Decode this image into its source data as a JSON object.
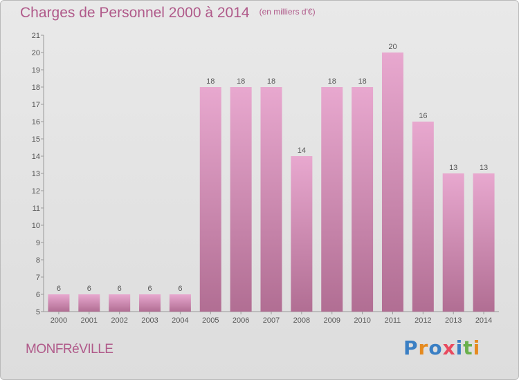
{
  "header": {
    "title": "Charges de Personnel 2000 à 2014",
    "unit": "(en milliers d'€)"
  },
  "commune": "MONFRéVILLE",
  "logo": {
    "text": "Proxiti",
    "letters": [
      {
        "ch": "P",
        "color": "#3a7fc4"
      },
      {
        "ch": "r",
        "color": "#e58a1f"
      },
      {
        "ch": "o",
        "color": "#3a7fc4"
      },
      {
        "ch": "x",
        "color": "#e84a5f"
      },
      {
        "ch": "i",
        "color": "#3a7fc4"
      },
      {
        "ch": "t",
        "color": "#6ab04c"
      },
      {
        "ch": "i",
        "color": "#e58a1f"
      }
    ]
  },
  "colors": {
    "bar_top": "#e8a8cf",
    "bar_bottom": "#b16e93",
    "text": "#b05a8a",
    "axis": "#999999"
  },
  "chart_data": {
    "type": "bar",
    "title": "Charges de Personnel 2000 à 2014",
    "xlabel": "",
    "ylabel": "",
    "categories": [
      "2000",
      "2001",
      "2002",
      "2003",
      "2004",
      "2005",
      "2006",
      "2007",
      "2008",
      "2009",
      "2010",
      "2011",
      "2012",
      "2013",
      "2014"
    ],
    "values": [
      6,
      6,
      6,
      6,
      6,
      18,
      18,
      18,
      14,
      18,
      18,
      20,
      16,
      13,
      13
    ],
    "ylim": [
      5,
      21
    ],
    "yticks": [
      5,
      6,
      7,
      8,
      9,
      10,
      11,
      12,
      13,
      14,
      15,
      16,
      17,
      18,
      19,
      20,
      21
    ],
    "grid": false,
    "legend": "none"
  }
}
